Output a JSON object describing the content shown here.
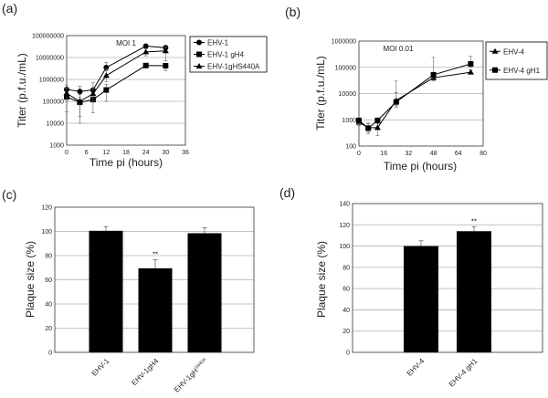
{
  "chart_data": [
    {
      "id": "a",
      "panel_label": "(a)",
      "type": "line",
      "scale_y": "log",
      "annotation": "MOI 1",
      "xlabel": "Time pi (hours)",
      "ylabel": "Titer (p.f.u./mL)",
      "xlim": [
        0,
        36
      ],
      "xticks": [
        "0",
        "6",
        "12",
        "18",
        "24",
        "30",
        "36"
      ],
      "ylim": [
        1000,
        100000000
      ],
      "yticks": [
        "1000",
        "10000",
        "100000",
        "1000000",
        "10000000",
        "100000000"
      ],
      "grid": true,
      "legend_position": "right",
      "x": [
        0,
        4,
        8,
        12,
        24,
        30
      ],
      "series": [
        {
          "name": "EHV-1",
          "marker": "circle",
          "values": [
            350000,
            280000,
            330000,
            3500000,
            33000000,
            28000000
          ],
          "error_high": [
            550000,
            500000,
            700000,
            6000000,
            40000000,
            35000000
          ],
          "error_low": [
            250000,
            200000,
            250000,
            2500000,
            28000000,
            22000000
          ]
        },
        {
          "name": "EHV-1 gH4",
          "marker": "square",
          "values": [
            160000,
            90000,
            120000,
            330000,
            4300000,
            4200000
          ],
          "error_high": [
            250000,
            150000,
            200000,
            600000,
            5000000,
            5500000
          ],
          "error_low": [
            33000,
            10000,
            30000,
            100000,
            3500000,
            2500000
          ]
        },
        {
          "name": "EHV-1gHS440A",
          "marker": "triangle",
          "values": [
            230000,
            100000,
            220000,
            1500000,
            18000000,
            20000000
          ],
          "error_high": [
            400000,
            200000,
            400000,
            3000000,
            25000000,
            30000000
          ],
          "error_low": [
            100000,
            20000,
            100000,
            800000,
            12000000,
            7000000
          ]
        }
      ]
    },
    {
      "id": "b",
      "panel_label": "(b)",
      "type": "line",
      "scale_y": "log",
      "annotation": "MOI 0.01",
      "xlabel": "Time pi (hours)",
      "ylabel": "Titer (p.f.u./mL)",
      "xlim": [
        0,
        80
      ],
      "xticks": [
        "0",
        "16",
        "32",
        "48",
        "64",
        "80"
      ],
      "ylim": [
        100,
        1000000
      ],
      "yticks": [
        "100",
        "1000",
        "10000",
        "100000",
        "1000000"
      ],
      "grid": true,
      "legend_position": "right",
      "x": [
        0,
        6,
        12,
        24,
        48,
        72
      ],
      "series": [
        {
          "name": "EHV-4",
          "marker": "triangle",
          "values": [
            800,
            500,
            500,
            5500,
            40000,
            65000
          ],
          "error_high": [
            1000,
            700,
            800,
            30000,
            50000,
            80000
          ],
          "error_low": [
            600,
            350,
            250,
            3000,
            30000,
            55000
          ]
        },
        {
          "name": "EHV-4 gH1",
          "marker": "square",
          "values": [
            950,
            480,
            950,
            4800,
            52000,
            135000
          ],
          "error_high": [
            1100,
            750,
            1100,
            11000,
            240000,
            260000
          ],
          "error_low": [
            700,
            300,
            700,
            3500,
            40000,
            100000
          ]
        }
      ]
    },
    {
      "id": "c",
      "panel_label": "(c)",
      "type": "bar",
      "ylabel": "Plaque size (%)",
      "ylim": [
        0,
        120
      ],
      "yticks": [
        "0",
        "20",
        "40",
        "60",
        "80",
        "100",
        "120"
      ],
      "grid": true,
      "categories": [
        "EHV-1",
        "EHV-1gH4",
        "EHV-1gH"
      ],
      "category_superscripts": [
        "",
        "",
        "S440A"
      ],
      "values": [
        100.5,
        69.5,
        98.5
      ],
      "error_high": [
        104,
        76.5,
        103
      ],
      "significance": [
        "",
        "**",
        ""
      ]
    },
    {
      "id": "d",
      "panel_label": "(d)",
      "type": "bar",
      "ylabel": "Plaque size (%)",
      "ylim": [
        0,
        140
      ],
      "yticks": [
        "0",
        "20",
        "40",
        "60",
        "80",
        "100",
        "120",
        "140"
      ],
      "grid": true,
      "categories": [
        "EHV-4",
        "EHV-4 gH1"
      ],
      "category_superscripts": [
        "",
        ""
      ],
      "values": [
        100,
        114
      ],
      "error_high": [
        105,
        118
      ],
      "significance": [
        "",
        "**"
      ]
    }
  ],
  "colors": {
    "bar": "#000000",
    "grid": "#b0b0b0",
    "line": "#000000"
  }
}
